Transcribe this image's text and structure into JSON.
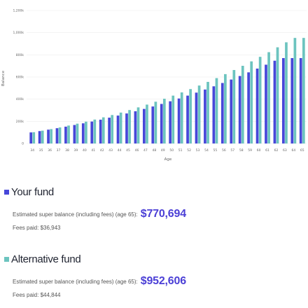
{
  "chart_data": {
    "type": "bar",
    "xlabel": "Age",
    "ylabel": "Balance",
    "ylim": [
      0,
      1200000
    ],
    "yticks": [
      {
        "value": 0,
        "label": "0"
      },
      {
        "value": 200000,
        "label": "200k"
      },
      {
        "value": 400000,
        "label": "400k"
      },
      {
        "value": 600000,
        "label": "600k"
      },
      {
        "value": 800000,
        "label": "800k"
      },
      {
        "value": 1000000,
        "label": "1,000k"
      },
      {
        "value": 1200000,
        "label": "1,200k"
      }
    ],
    "categories": [
      "34",
      "35",
      "36",
      "37",
      "38",
      "39",
      "40",
      "41",
      "42",
      "43",
      "44",
      "45",
      "46",
      "47",
      "48",
      "49",
      "50",
      "51",
      "52",
      "53",
      "54",
      "55",
      "56",
      "57",
      "58",
      "59",
      "60",
      "61",
      "62",
      "63",
      "64",
      "65"
    ],
    "series": [
      {
        "name": "Your fund",
        "color": "#4747d9",
        "values": [
          100000,
          112000,
          125000,
          138000,
          152000,
          167000,
          182000,
          198000,
          215000,
          233000,
          252000,
          271000,
          291000,
          312000,
          334000,
          357000,
          381000,
          406000,
          432000,
          459000,
          487000,
          516000,
          546000,
          577000,
          609000,
          642000,
          676000,
          711000,
          747000,
          770694,
          770694,
          770694
        ]
      },
      {
        "name": "Alternative fund",
        "color": "#6cc4bf",
        "values": [
          102000,
          116000,
          130000,
          145000,
          162000,
          179000,
          197000,
          216000,
          236000,
          257000,
          279000,
          302000,
          326000,
          351000,
          377000,
          404000,
          432000,
          461000,
          491000,
          523000,
          556000,
          590000,
          626000,
          663000,
          701000,
          741000,
          782000,
          824000,
          868000,
          913000,
          952606,
          952606
        ]
      }
    ]
  },
  "legend": {
    "your_fund": {
      "title": "Your fund",
      "estimate_label": "Estimated super balance (including fees) (age 65):",
      "estimate_value": "$770,694",
      "fees": "Fees paid: $36,943",
      "color": "#4747d9"
    },
    "alternative_fund": {
      "title": "Alternative fund",
      "estimate_label": "Estimated super balance (including fees) (age 65):",
      "estimate_value": "$952,606",
      "fees": "Fees paid: $44,844",
      "color": "#6cc4bf"
    }
  }
}
